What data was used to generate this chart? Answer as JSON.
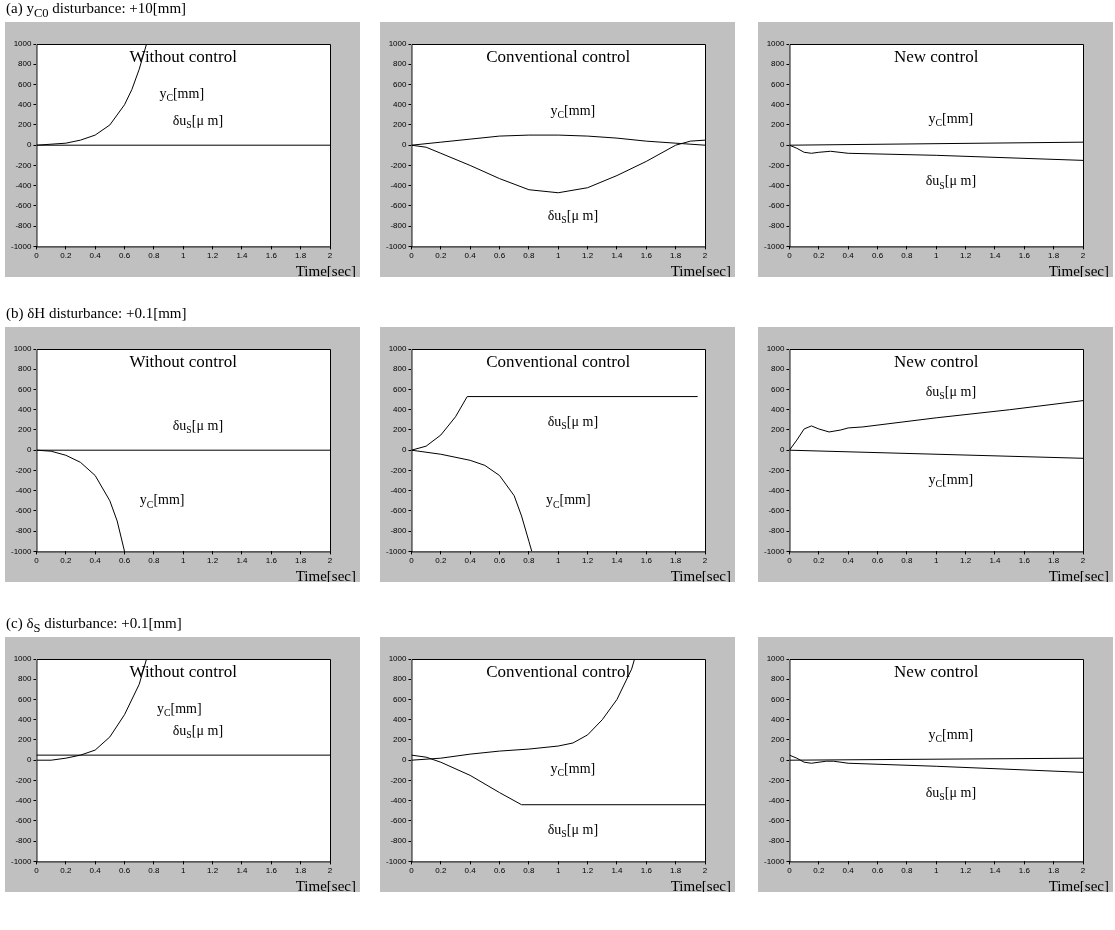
{
  "chart_data": [
    {
      "type": "line",
      "subtitle": "(a) y$_{C0}$ disturbance: +10[mm]",
      "title": "Without control",
      "xlabel": "Time[sec]",
      "xlim": [
        0,
        2
      ],
      "xticks": [
        0,
        0.2,
        0.4,
        0.6,
        0.8,
        1,
        1.2,
        1.4,
        1.6,
        1.8,
        2
      ],
      "ylim": [
        -1000,
        1000
      ],
      "yticks": [
        -1000,
        -800,
        -600,
        -400,
        -200,
        0,
        200,
        400,
        600,
        800,
        1000
      ],
      "series": [
        {
          "name": "y$_{C}$[mm]",
          "color": "#000000",
          "x": [
            0,
            0.1,
            0.2,
            0.3,
            0.4,
            0.5,
            0.6,
            0.65,
            0.7,
            0.75
          ],
          "values": [
            0,
            10,
            20,
            50,
            100,
            200,
            400,
            550,
            750,
            1000
          ]
        },
        {
          "name": "δu$_{S}$[μ m]",
          "color": "#000000",
          "x": [
            0,
            2
          ],
          "values": [
            0,
            0
          ]
        }
      ]
    },
    {
      "type": "line",
      "title": "Conventional control",
      "xlabel": "Time[sec]",
      "xlim": [
        0,
        2
      ],
      "xticks": [
        0,
        0.2,
        0.4,
        0.6,
        0.8,
        1,
        1.2,
        1.4,
        1.6,
        1.8,
        2
      ],
      "ylim": [
        -1000,
        1000
      ],
      "yticks": [
        -1000,
        -800,
        -600,
        -400,
        -200,
        0,
        200,
        400,
        600,
        800,
        1000
      ],
      "series": [
        {
          "name": "y$_{C}$[mm]",
          "color": "#000000",
          "x": [
            0,
            0.2,
            0.4,
            0.6,
            0.8,
            1,
            1.2,
            1.4,
            1.6,
            1.8,
            2
          ],
          "values": [
            0,
            30,
            60,
            90,
            100,
            100,
            90,
            70,
            40,
            20,
            0
          ]
        },
        {
          "name": "δu$_{S}$[μ m]",
          "color": "#000000",
          "x": [
            0,
            0.1,
            0.2,
            0.4,
            0.6,
            0.8,
            1,
            1.2,
            1.4,
            1.6,
            1.7,
            1.8,
            1.9,
            2
          ],
          "values": [
            0,
            -20,
            -80,
            -200,
            -330,
            -440,
            -470,
            -420,
            -300,
            -160,
            -80,
            0,
            40,
            50
          ]
        }
      ]
    },
    {
      "type": "line",
      "title": "New control",
      "xlabel": "Time[sec]",
      "xlim": [
        0,
        2
      ],
      "xticks": [
        0,
        0.2,
        0.4,
        0.6,
        0.8,
        1,
        1.2,
        1.4,
        1.6,
        1.8,
        2
      ],
      "ylim": [
        -1000,
        1000
      ],
      "yticks": [
        -1000,
        -800,
        -600,
        -400,
        -200,
        0,
        200,
        400,
        600,
        800,
        1000
      ],
      "series": [
        {
          "name": "y$_{C}$[mm]",
          "color": "#000000",
          "x": [
            0,
            2
          ],
          "values": [
            0,
            30
          ]
        },
        {
          "name": "δu$_{S}$[μ m]",
          "color": "#000000",
          "x": [
            0,
            0.05,
            0.1,
            0.15,
            0.2,
            0.28,
            0.4,
            1,
            2
          ],
          "values": [
            0,
            -30,
            -70,
            -80,
            -70,
            -60,
            -80,
            -100,
            -150
          ]
        }
      ]
    },
    {
      "type": "line",
      "subtitle": "(b) δH disturbance: +0.1[mm]",
      "title": "Without control",
      "xlabel": "Time[sec]",
      "xlim": [
        0,
        2
      ],
      "xticks": [
        0,
        0.2,
        0.4,
        0.6,
        0.8,
        1,
        1.2,
        1.4,
        1.6,
        1.8,
        2
      ],
      "ylim": [
        -1000,
        1000
      ],
      "yticks": [
        -1000,
        -800,
        -600,
        -400,
        -200,
        0,
        200,
        400,
        600,
        800,
        1000
      ],
      "series": [
        {
          "name": "y$_{C}$[mm]",
          "color": "#000000",
          "x": [
            0,
            0.1,
            0.2,
            0.3,
            0.4,
            0.5,
            0.55,
            0.6
          ],
          "values": [
            0,
            -10,
            -50,
            -120,
            -250,
            -500,
            -700,
            -1000
          ]
        },
        {
          "name": "δu$_{S}$[μ m]",
          "color": "#000000",
          "x": [
            0,
            2
          ],
          "values": [
            0,
            0
          ]
        }
      ]
    },
    {
      "type": "line",
      "title": "Conventional control",
      "xlabel": "Time[sec]",
      "xlim": [
        0,
        2
      ],
      "xticks": [
        0,
        0.2,
        0.4,
        0.6,
        0.8,
        1,
        1.2,
        1.4,
        1.6,
        1.8,
        2
      ],
      "ylim": [
        -1000,
        1000
      ],
      "yticks": [
        -1000,
        -800,
        -600,
        -400,
        -200,
        0,
        200,
        400,
        600,
        800,
        1000
      ],
      "series": [
        {
          "name": "y$_{C}$[mm]",
          "color": "#000000",
          "x": [
            0,
            0.2,
            0.4,
            0.5,
            0.6,
            0.7,
            0.75,
            0.8,
            0.82
          ],
          "values": [
            0,
            -40,
            -100,
            -150,
            -250,
            -450,
            -650,
            -900,
            -1000
          ]
        },
        {
          "name": "δu$_{S}$[μ m]",
          "color": "#000000",
          "x": [
            0,
            0.1,
            0.2,
            0.3,
            0.38,
            1.95
          ],
          "values": [
            0,
            40,
            150,
            330,
            530,
            530
          ]
        }
      ]
    },
    {
      "type": "line",
      "title": "New control",
      "xlabel": "Time[sec]",
      "xlim": [
        0,
        2
      ],
      "xticks": [
        0,
        0.2,
        0.4,
        0.6,
        0.8,
        1,
        1.2,
        1.4,
        1.6,
        1.8,
        2
      ],
      "ylim": [
        -1000,
        1000
      ],
      "yticks": [
        -1000,
        -800,
        -600,
        -400,
        -200,
        0,
        200,
        400,
        600,
        800,
        1000
      ],
      "series": [
        {
          "name": "y$_{C}$[mm]",
          "color": "#000000",
          "x": [
            0,
            2
          ],
          "values": [
            0,
            -80
          ]
        },
        {
          "name": "δu$_{S}$[μ m]",
          "color": "#000000",
          "x": [
            0,
            0.05,
            0.1,
            0.15,
            0.2,
            0.27,
            0.35,
            0.4,
            0.5,
            1,
            1.5,
            2
          ],
          "values": [
            0,
            100,
            210,
            240,
            210,
            180,
            200,
            220,
            230,
            320,
            400,
            490
          ]
        }
      ]
    },
    {
      "type": "line",
      "subtitle": "(c) δ$_{S}$ disturbance: +0.1[mm]",
      "title": "Without control",
      "xlabel": "Time[sec]",
      "xlim": [
        0,
        2
      ],
      "xticks": [
        0,
        0.2,
        0.4,
        0.6,
        0.8,
        1,
        1.2,
        1.4,
        1.6,
        1.8,
        2
      ],
      "ylim": [
        -1000,
        1000
      ],
      "yticks": [
        -1000,
        -800,
        -600,
        -400,
        -200,
        0,
        200,
        400,
        600,
        800,
        1000
      ],
      "series": [
        {
          "name": "y$_{C}$[mm]",
          "color": "#000000",
          "x": [
            0,
            0.1,
            0.2,
            0.3,
            0.4,
            0.5,
            0.6,
            0.7,
            0.75
          ],
          "values": [
            0,
            0,
            20,
            50,
            100,
            230,
            450,
            750,
            1000
          ]
        },
        {
          "name": "δu$_{S}$[μ m]",
          "color": "#000000",
          "x": [
            0,
            2
          ],
          "values": [
            50,
            50
          ]
        }
      ]
    },
    {
      "type": "line",
      "title": "Conventional control",
      "xlabel": "Time[sec]",
      "xlim": [
        0,
        2
      ],
      "xticks": [
        0,
        0.2,
        0.4,
        0.6,
        0.8,
        1,
        1.2,
        1.4,
        1.6,
        1.8,
        2
      ],
      "ylim": [
        -1000,
        1000
      ],
      "yticks": [
        -1000,
        -800,
        -600,
        -400,
        -200,
        0,
        200,
        400,
        600,
        800,
        1000
      ],
      "series": [
        {
          "name": "y$_{C}$[mm]",
          "color": "#000000",
          "x": [
            0,
            0.2,
            0.4,
            0.6,
            0.8,
            1,
            1.1,
            1.2,
            1.3,
            1.4,
            1.5,
            1.52
          ],
          "values": [
            0,
            20,
            60,
            90,
            110,
            140,
            170,
            250,
            400,
            600,
            900,
            1000
          ]
        },
        {
          "name": "δu$_{S}$[μ m]",
          "color": "#000000",
          "x": [
            0,
            0.1,
            0.2,
            0.4,
            0.6,
            0.75,
            2
          ],
          "values": [
            50,
            30,
            -20,
            -150,
            -320,
            -440,
            -440
          ]
        }
      ]
    },
    {
      "type": "line",
      "title": "New control",
      "xlabel": "Time[sec]",
      "xlim": [
        0,
        2
      ],
      "xticks": [
        0,
        0.2,
        0.4,
        0.6,
        0.8,
        1,
        1.2,
        1.4,
        1.6,
        1.8,
        2
      ],
      "ylim": [
        -1000,
        1000
      ],
      "yticks": [
        -1000,
        -800,
        -600,
        -400,
        -200,
        0,
        200,
        400,
        600,
        800,
        1000
      ],
      "series": [
        {
          "name": "y$_{C}$[mm]",
          "color": "#000000",
          "x": [
            0,
            2
          ],
          "values": [
            0,
            20
          ]
        },
        {
          "name": "δu$_{S}$[μ m]",
          "color": "#000000",
          "x": [
            0,
            0.05,
            0.1,
            0.15,
            0.25,
            0.3,
            0.4,
            1,
            2
          ],
          "values": [
            50,
            20,
            -20,
            -30,
            -10,
            -10,
            -30,
            -60,
            -120
          ]
        }
      ]
    }
  ]
}
